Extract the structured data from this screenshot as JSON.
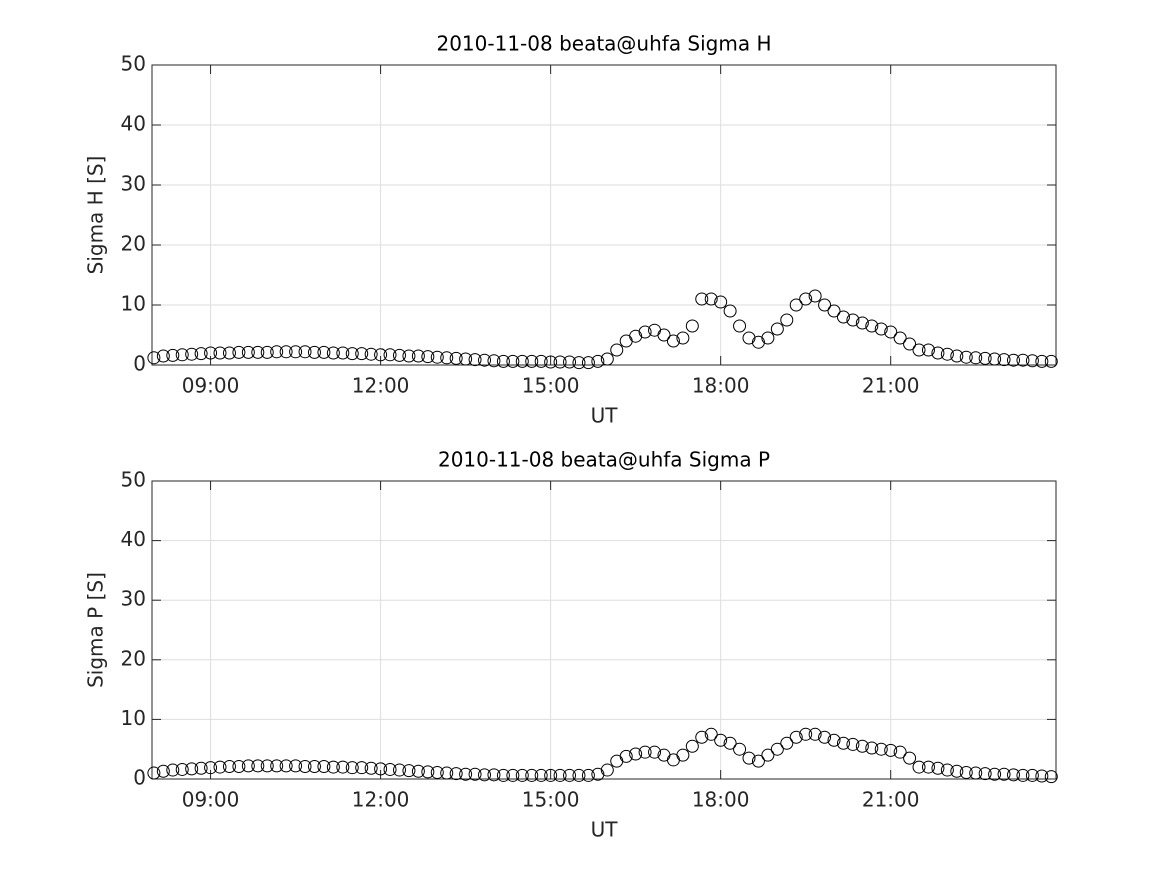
{
  "chart_data": [
    {
      "type": "scatter",
      "title": "2010-11-08  beata@uhfa Sigma H",
      "xlabel": "UT",
      "ylabel": "Sigma H [S]",
      "x": [
        "08:00",
        "08:10",
        "08:20",
        "08:30",
        "08:40",
        "08:50",
        "09:00",
        "09:10",
        "09:20",
        "09:30",
        "09:40",
        "09:50",
        "10:00",
        "10:10",
        "10:20",
        "10:30",
        "10:40",
        "10:50",
        "11:00",
        "11:10",
        "11:20",
        "11:30",
        "11:40",
        "11:50",
        "12:00",
        "12:10",
        "12:20",
        "12:30",
        "12:40",
        "12:50",
        "13:00",
        "13:10",
        "13:20",
        "13:30",
        "13:40",
        "13:50",
        "14:00",
        "14:10",
        "14:20",
        "14:30",
        "14:40",
        "14:50",
        "15:00",
        "15:10",
        "15:20",
        "15:30",
        "15:40",
        "15:50",
        "16:00",
        "16:10",
        "16:20",
        "16:30",
        "16:40",
        "16:50",
        "17:00",
        "17:10",
        "17:20",
        "17:30",
        "17:40",
        "17:50",
        "18:00",
        "18:10",
        "18:20",
        "18:30",
        "18:40",
        "18:50",
        "19:00",
        "19:10",
        "19:20",
        "19:30",
        "19:40",
        "19:50",
        "20:00",
        "20:10",
        "20:20",
        "20:30",
        "20:40",
        "20:50",
        "21:00",
        "21:10",
        "21:20",
        "21:30",
        "21:40",
        "21:50",
        "22:00",
        "22:10",
        "22:20",
        "22:30",
        "22:40",
        "22:50",
        "23:00",
        "23:10",
        "23:20",
        "23:30",
        "23:40",
        "23:50"
      ],
      "values": [
        1.2,
        1.5,
        1.6,
        1.7,
        1.8,
        1.9,
        2.0,
        2.0,
        2.0,
        2.1,
        2.1,
        2.1,
        2.1,
        2.2,
        2.2,
        2.2,
        2.2,
        2.1,
        2.1,
        2.0,
        2.0,
        1.9,
        1.9,
        1.8,
        1.7,
        1.7,
        1.6,
        1.5,
        1.5,
        1.4,
        1.3,
        1.2,
        1.1,
        1.0,
        0.9,
        0.8,
        0.7,
        0.6,
        0.6,
        0.6,
        0.6,
        0.6,
        0.5,
        0.5,
        0.5,
        0.4,
        0.4,
        0.6,
        1.0,
        2.5,
        4.0,
        4.8,
        5.5,
        5.8,
        5.0,
        4.0,
        4.5,
        6.5,
        11.0,
        11.0,
        10.5,
        9.0,
        6.5,
        4.5,
        3.8,
        4.5,
        6.0,
        7.5,
        10.0,
        11.0,
        11.5,
        10.0,
        9.0,
        8.0,
        7.5,
        7.0,
        6.5,
        6.0,
        5.5,
        4.5,
        3.5,
        2.5,
        2.5,
        2.0,
        1.8,
        1.5,
        1.3,
        1.2,
        1.1,
        1.0,
        0.9,
        0.8,
        0.8,
        0.7,
        0.6,
        0.6
      ],
      "color": "#000000",
      "marker": "o",
      "xlim": [
        "07:58",
        "23:55"
      ],
      "xticks": [
        "09:00",
        "12:00",
        "15:00",
        "18:00",
        "21:00"
      ],
      "ylim": [
        0,
        50
      ],
      "yticks": [
        0,
        10,
        20,
        30,
        40,
        50
      ],
      "grid": true
    },
    {
      "type": "scatter",
      "title": "2010-11-08  beata@uhfa Sigma P",
      "xlabel": "UT",
      "ylabel": "Sigma P [S]",
      "x": [
        "08:00",
        "08:10",
        "08:20",
        "08:30",
        "08:40",
        "08:50",
        "09:00",
        "09:10",
        "09:20",
        "09:30",
        "09:40",
        "09:50",
        "10:00",
        "10:10",
        "10:20",
        "10:30",
        "10:40",
        "10:50",
        "11:00",
        "11:10",
        "11:20",
        "11:30",
        "11:40",
        "11:50",
        "12:00",
        "12:10",
        "12:20",
        "12:30",
        "12:40",
        "12:50",
        "13:00",
        "13:10",
        "13:20",
        "13:30",
        "13:40",
        "13:50",
        "14:00",
        "14:10",
        "14:20",
        "14:30",
        "14:40",
        "14:50",
        "15:00",
        "15:10",
        "15:20",
        "15:30",
        "15:40",
        "15:50",
        "16:00",
        "16:10",
        "16:20",
        "16:30",
        "16:40",
        "16:50",
        "17:00",
        "17:10",
        "17:20",
        "17:30",
        "17:40",
        "17:50",
        "18:00",
        "18:10",
        "18:20",
        "18:30",
        "18:40",
        "18:50",
        "19:00",
        "19:10",
        "19:20",
        "19:30",
        "19:40",
        "19:50",
        "20:00",
        "20:10",
        "20:20",
        "20:30",
        "20:40",
        "20:50",
        "21:00",
        "21:10",
        "21:20",
        "21:30",
        "21:40",
        "21:50",
        "22:00",
        "22:10",
        "22:20",
        "22:30",
        "22:40",
        "22:50",
        "23:00",
        "23:10",
        "23:20",
        "23:30",
        "23:40",
        "23:50"
      ],
      "values": [
        1.0,
        1.3,
        1.5,
        1.6,
        1.7,
        1.8,
        1.9,
        2.0,
        2.1,
        2.1,
        2.2,
        2.2,
        2.2,
        2.2,
        2.2,
        2.2,
        2.1,
        2.1,
        2.1,
        2.0,
        2.0,
        1.9,
        1.9,
        1.8,
        1.7,
        1.6,
        1.5,
        1.4,
        1.3,
        1.2,
        1.1,
        1.0,
        0.9,
        0.8,
        0.8,
        0.7,
        0.7,
        0.6,
        0.6,
        0.6,
        0.6,
        0.6,
        0.6,
        0.6,
        0.6,
        0.6,
        0.6,
        0.8,
        1.5,
        3.0,
        3.8,
        4.2,
        4.5,
        4.5,
        4.0,
        3.2,
        4.0,
        5.5,
        7.0,
        7.5,
        6.5,
        6.0,
        5.0,
        3.5,
        3.0,
        4.0,
        5.0,
        6.0,
        7.0,
        7.5,
        7.5,
        7.0,
        6.5,
        6.0,
        5.8,
        5.5,
        5.2,
        5.0,
        4.8,
        4.5,
        3.5,
        2.0,
        2.0,
        1.8,
        1.5,
        1.3,
        1.1,
        1.0,
        0.9,
        0.8,
        0.8,
        0.7,
        0.6,
        0.6,
        0.5,
        0.4
      ],
      "color": "#000000",
      "marker": "o",
      "xlim": [
        "07:58",
        "23:55"
      ],
      "xticks": [
        "09:00",
        "12:00",
        "15:00",
        "18:00",
        "21:00"
      ],
      "ylim": [
        0,
        50
      ],
      "yticks": [
        0,
        10,
        20,
        30,
        40,
        50
      ],
      "grid": true
    }
  ]
}
